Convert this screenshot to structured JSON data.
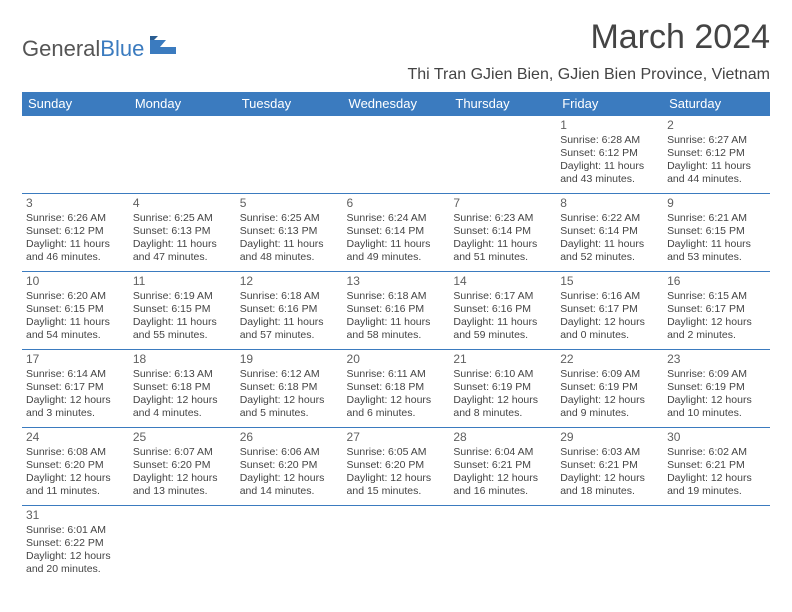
{
  "logo": {
    "text1": "General",
    "text2": "Blue"
  },
  "title": "March 2024",
  "subtitle": "Thi Tran GJien Bien, GJien Bien Province, Vietnam",
  "colors": {
    "header_bg": "#3b7bbf",
    "header_fg": "#ffffff",
    "border": "#3b7bbf",
    "text": "#444444",
    "daynum": "#606060"
  },
  "day_headers": [
    "Sunday",
    "Monday",
    "Tuesday",
    "Wednesday",
    "Thursday",
    "Friday",
    "Saturday"
  ],
  "weeks": [
    [
      null,
      null,
      null,
      null,
      null,
      {
        "d": "1",
        "sr": "6:28 AM",
        "ss": "6:12 PM",
        "dl": "11 hours and 43 minutes."
      },
      {
        "d": "2",
        "sr": "6:27 AM",
        "ss": "6:12 PM",
        "dl": "11 hours and 44 minutes."
      }
    ],
    [
      {
        "d": "3",
        "sr": "6:26 AM",
        "ss": "6:12 PM",
        "dl": "11 hours and 46 minutes."
      },
      {
        "d": "4",
        "sr": "6:25 AM",
        "ss": "6:13 PM",
        "dl": "11 hours and 47 minutes."
      },
      {
        "d": "5",
        "sr": "6:25 AM",
        "ss": "6:13 PM",
        "dl": "11 hours and 48 minutes."
      },
      {
        "d": "6",
        "sr": "6:24 AM",
        "ss": "6:14 PM",
        "dl": "11 hours and 49 minutes."
      },
      {
        "d": "7",
        "sr": "6:23 AM",
        "ss": "6:14 PM",
        "dl": "11 hours and 51 minutes."
      },
      {
        "d": "8",
        "sr": "6:22 AM",
        "ss": "6:14 PM",
        "dl": "11 hours and 52 minutes."
      },
      {
        "d": "9",
        "sr": "6:21 AM",
        "ss": "6:15 PM",
        "dl": "11 hours and 53 minutes."
      }
    ],
    [
      {
        "d": "10",
        "sr": "6:20 AM",
        "ss": "6:15 PM",
        "dl": "11 hours and 54 minutes."
      },
      {
        "d": "11",
        "sr": "6:19 AM",
        "ss": "6:15 PM",
        "dl": "11 hours and 55 minutes."
      },
      {
        "d": "12",
        "sr": "6:18 AM",
        "ss": "6:16 PM",
        "dl": "11 hours and 57 minutes."
      },
      {
        "d": "13",
        "sr": "6:18 AM",
        "ss": "6:16 PM",
        "dl": "11 hours and 58 minutes."
      },
      {
        "d": "14",
        "sr": "6:17 AM",
        "ss": "6:16 PM",
        "dl": "11 hours and 59 minutes."
      },
      {
        "d": "15",
        "sr": "6:16 AM",
        "ss": "6:17 PM",
        "dl": "12 hours and 0 minutes."
      },
      {
        "d": "16",
        "sr": "6:15 AM",
        "ss": "6:17 PM",
        "dl": "12 hours and 2 minutes."
      }
    ],
    [
      {
        "d": "17",
        "sr": "6:14 AM",
        "ss": "6:17 PM",
        "dl": "12 hours and 3 minutes."
      },
      {
        "d": "18",
        "sr": "6:13 AM",
        "ss": "6:18 PM",
        "dl": "12 hours and 4 minutes."
      },
      {
        "d": "19",
        "sr": "6:12 AM",
        "ss": "6:18 PM",
        "dl": "12 hours and 5 minutes."
      },
      {
        "d": "20",
        "sr": "6:11 AM",
        "ss": "6:18 PM",
        "dl": "12 hours and 6 minutes."
      },
      {
        "d": "21",
        "sr": "6:10 AM",
        "ss": "6:19 PM",
        "dl": "12 hours and 8 minutes."
      },
      {
        "d": "22",
        "sr": "6:09 AM",
        "ss": "6:19 PM",
        "dl": "12 hours and 9 minutes."
      },
      {
        "d": "23",
        "sr": "6:09 AM",
        "ss": "6:19 PM",
        "dl": "12 hours and 10 minutes."
      }
    ],
    [
      {
        "d": "24",
        "sr": "6:08 AM",
        "ss": "6:20 PM",
        "dl": "12 hours and 11 minutes."
      },
      {
        "d": "25",
        "sr": "6:07 AM",
        "ss": "6:20 PM",
        "dl": "12 hours and 13 minutes."
      },
      {
        "d": "26",
        "sr": "6:06 AM",
        "ss": "6:20 PM",
        "dl": "12 hours and 14 minutes."
      },
      {
        "d": "27",
        "sr": "6:05 AM",
        "ss": "6:20 PM",
        "dl": "12 hours and 15 minutes."
      },
      {
        "d": "28",
        "sr": "6:04 AM",
        "ss": "6:21 PM",
        "dl": "12 hours and 16 minutes."
      },
      {
        "d": "29",
        "sr": "6:03 AM",
        "ss": "6:21 PM",
        "dl": "12 hours and 18 minutes."
      },
      {
        "d": "30",
        "sr": "6:02 AM",
        "ss": "6:21 PM",
        "dl": "12 hours and 19 minutes."
      }
    ],
    [
      {
        "d": "31",
        "sr": "6:01 AM",
        "ss": "6:22 PM",
        "dl": "12 hours and 20 minutes."
      },
      null,
      null,
      null,
      null,
      null,
      null
    ]
  ],
  "labels": {
    "sunrise": "Sunrise:",
    "sunset": "Sunset:",
    "daylight": "Daylight:"
  }
}
